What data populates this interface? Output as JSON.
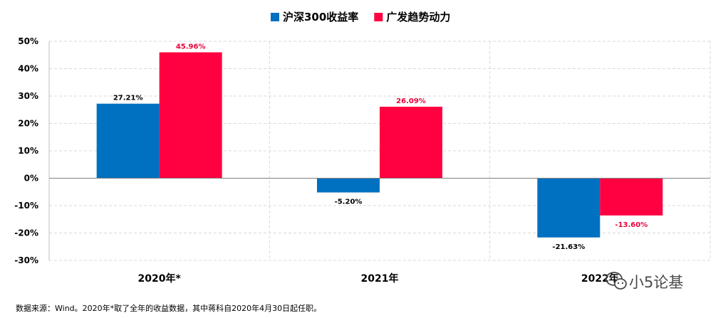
{
  "chart_data": {
    "type": "bar",
    "categories": [
      "2020年*",
      "2021年",
      "2022年"
    ],
    "series": [
      {
        "name": "沪深300收益率",
        "color": "#0070C0",
        "values": [
          27.21,
          -5.2,
          -21.63
        ],
        "labels": [
          "27.21%",
          "-5.20%",
          "-21.63%"
        ],
        "label_color": "#000000"
      },
      {
        "name": "广发趋势动力",
        "color": "#FF0040",
        "values": [
          45.96,
          26.09,
          -13.6
        ],
        "labels": [
          "45.96%",
          "26.09%",
          "-13.60%"
        ],
        "label_color": "#E8003A"
      }
    ],
    "ylim": [
      -30,
      50
    ],
    "yticks": [
      50,
      40,
      30,
      20,
      10,
      0,
      -10,
      -20,
      -30
    ],
    "ytick_labels": [
      "50%",
      "40%",
      "30%",
      "20%",
      "10%",
      "0%",
      "-10%",
      "-20%",
      "-30%"
    ],
    "grid": true,
    "legend_position": "top-center",
    "title": "",
    "xlabel": "",
    "ylabel": ""
  },
  "footnote": "数据来源：Wind。2020年*取了全年的收益数据，其中蒋科自2020年4月30日起任职。",
  "watermark": {
    "icon": "wechat-icon",
    "text": "小5论基"
  }
}
